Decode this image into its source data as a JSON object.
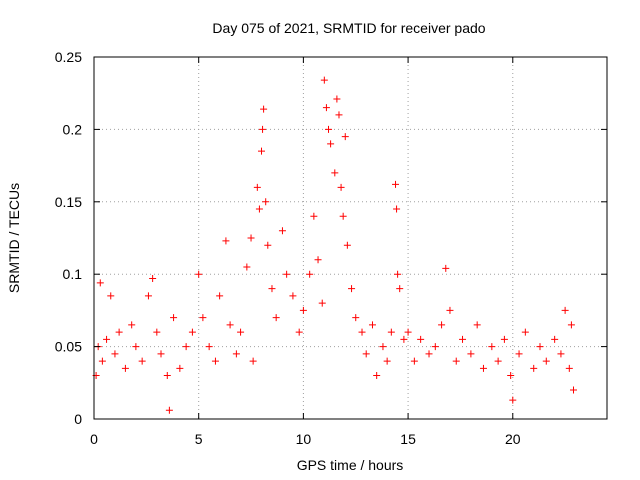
{
  "chart_data": {
    "type": "scatter",
    "title": "Day 075 of 2021, SRMTID for receiver pado",
    "xlabel": "GPS time / hours",
    "ylabel": "SRMTID / TECUs",
    "xlim": [
      0,
      24.5
    ],
    "ylim": [
      0,
      0.25
    ],
    "x_ticks": [
      0,
      5,
      10,
      15,
      20
    ],
    "x_tick_labels": [
      "0",
      "5",
      "10",
      "15",
      "20"
    ],
    "y_ticks": [
      0,
      0.05,
      0.1,
      0.15,
      0.2,
      0.25
    ],
    "y_tick_labels": [
      "0",
      "0.05",
      "0.1",
      "0.15",
      "0.2",
      "0.25"
    ],
    "grid": true,
    "marker": "+",
    "series": [
      {
        "name": "SRMTID",
        "color": "#ff0000",
        "points": [
          [
            0.1,
            0.03
          ],
          [
            0.2,
            0.05
          ],
          [
            0.3,
            0.094
          ],
          [
            0.4,
            0.04
          ],
          [
            0.6,
            0.055
          ],
          [
            0.8,
            0.085
          ],
          [
            1.0,
            0.045
          ],
          [
            1.2,
            0.06
          ],
          [
            1.5,
            0.035
          ],
          [
            1.8,
            0.065
          ],
          [
            2.0,
            0.05
          ],
          [
            2.3,
            0.04
          ],
          [
            2.6,
            0.085
          ],
          [
            2.8,
            0.097
          ],
          [
            3.0,
            0.06
          ],
          [
            3.2,
            0.045
          ],
          [
            3.5,
            0.03
          ],
          [
            3.6,
            0.006
          ],
          [
            3.8,
            0.07
          ],
          [
            4.1,
            0.035
          ],
          [
            4.4,
            0.05
          ],
          [
            4.7,
            0.06
          ],
          [
            5.0,
            0.1
          ],
          [
            5.2,
            0.07
          ],
          [
            5.5,
            0.05
          ],
          [
            5.8,
            0.04
          ],
          [
            6.0,
            0.085
          ],
          [
            6.3,
            0.123
          ],
          [
            6.5,
            0.065
          ],
          [
            6.8,
            0.045
          ],
          [
            7.0,
            0.06
          ],
          [
            7.3,
            0.105
          ],
          [
            7.5,
            0.125
          ],
          [
            7.6,
            0.04
          ],
          [
            7.8,
            0.16
          ],
          [
            7.9,
            0.145
          ],
          [
            8.0,
            0.185
          ],
          [
            8.05,
            0.2
          ],
          [
            8.1,
            0.214
          ],
          [
            8.2,
            0.15
          ],
          [
            8.3,
            0.12
          ],
          [
            8.5,
            0.09
          ],
          [
            8.7,
            0.07
          ],
          [
            9.0,
            0.13
          ],
          [
            9.2,
            0.1
          ],
          [
            9.5,
            0.085
          ],
          [
            9.8,
            0.06
          ],
          [
            10.0,
            0.075
          ],
          [
            10.3,
            0.1
          ],
          [
            10.5,
            0.14
          ],
          [
            10.7,
            0.11
          ],
          [
            10.9,
            0.08
          ],
          [
            11.0,
            0.234
          ],
          [
            11.1,
            0.215
          ],
          [
            11.2,
            0.2
          ],
          [
            11.3,
            0.19
          ],
          [
            11.5,
            0.17
          ],
          [
            11.6,
            0.221
          ],
          [
            11.7,
            0.21
          ],
          [
            11.8,
            0.16
          ],
          [
            11.9,
            0.14
          ],
          [
            12.0,
            0.195
          ],
          [
            12.1,
            0.12
          ],
          [
            12.3,
            0.09
          ],
          [
            12.5,
            0.07
          ],
          [
            12.8,
            0.06
          ],
          [
            13.0,
            0.045
          ],
          [
            13.3,
            0.065
          ],
          [
            13.5,
            0.03
          ],
          [
            13.8,
            0.05
          ],
          [
            14.0,
            0.04
          ],
          [
            14.2,
            0.06
          ],
          [
            14.4,
            0.162
          ],
          [
            14.45,
            0.145
          ],
          [
            14.5,
            0.1
          ],
          [
            14.6,
            0.09
          ],
          [
            14.8,
            0.055
          ],
          [
            15.0,
            0.06
          ],
          [
            15.3,
            0.04
          ],
          [
            15.6,
            0.055
          ],
          [
            16.0,
            0.045
          ],
          [
            16.3,
            0.05
          ],
          [
            16.6,
            0.065
          ],
          [
            16.8,
            0.104
          ],
          [
            17.0,
            0.075
          ],
          [
            17.3,
            0.04
          ],
          [
            17.6,
            0.055
          ],
          [
            18.0,
            0.045
          ],
          [
            18.3,
            0.065
          ],
          [
            18.6,
            0.035
          ],
          [
            19.0,
            0.05
          ],
          [
            19.3,
            0.04
          ],
          [
            19.6,
            0.055
          ],
          [
            19.9,
            0.03
          ],
          [
            20.0,
            0.013
          ],
          [
            20.3,
            0.045
          ],
          [
            20.6,
            0.06
          ],
          [
            21.0,
            0.035
          ],
          [
            21.3,
            0.05
          ],
          [
            21.6,
            0.04
          ],
          [
            22.0,
            0.055
          ],
          [
            22.3,
            0.045
          ],
          [
            22.5,
            0.075
          ],
          [
            22.7,
            0.035
          ],
          [
            22.8,
            0.065
          ],
          [
            22.9,
            0.02
          ]
        ]
      }
    ]
  }
}
